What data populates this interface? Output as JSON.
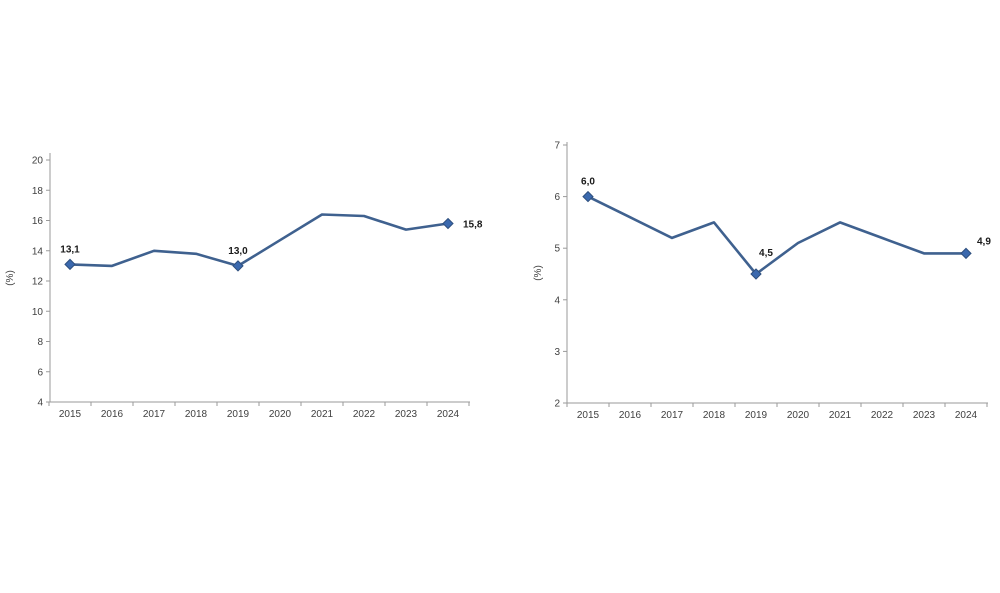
{
  "page": {
    "background_color": "#ffffff"
  },
  "chart_data": [
    {
      "id": "left-chart",
      "type": "line",
      "title": "",
      "xlabel": "",
      "ylabel": "(%)",
      "categories": [
        "2015",
        "2016",
        "2017",
        "2018",
        "2019",
        "2020",
        "2021",
        "2022",
        "2023",
        "2024"
      ],
      "values": [
        13.1,
        13.0,
        14.0,
        13.8,
        13.0,
        14.7,
        16.4,
        16.3,
        15.4,
        15.8
      ],
      "ylim": [
        4,
        20
      ],
      "ytick_step": 2,
      "grid": false,
      "legend": "none",
      "line_color": "#3F618F",
      "marker_color": "#3B69AE",
      "marker_stroke_color": "#2E4F7E",
      "axis_color": "#9a9a9a",
      "point_labels": [
        {
          "index": 0,
          "text": "13,1",
          "pos": "above"
        },
        {
          "index": 4,
          "text": "13,0",
          "pos": "above"
        },
        {
          "index": 9,
          "text": "15,8",
          "pos": "right"
        }
      ]
    },
    {
      "id": "right-chart",
      "type": "line",
      "title": "",
      "xlabel": "",
      "ylabel": "(%)",
      "categories": [
        "2015",
        "2016",
        "2017",
        "2018",
        "2019",
        "2020",
        "2021",
        "2022",
        "2023",
        "2024"
      ],
      "values": [
        6.0,
        5.6,
        5.2,
        5.5,
        4.5,
        5.1,
        5.5,
        5.2,
        4.9,
        4.9
      ],
      "ylim": [
        2,
        7
      ],
      "ytick_step": 1,
      "grid": false,
      "legend": "none",
      "line_color": "#3F618F",
      "marker_color": "#3B69AE",
      "marker_stroke_color": "#2E4F7E",
      "axis_color": "#9a9a9a",
      "point_labels": [
        {
          "index": 0,
          "text": "6,0",
          "pos": "above"
        },
        {
          "index": 4,
          "text": "4,5",
          "pos": "above-right"
        },
        {
          "index": 9,
          "text": "4,9",
          "pos": "right-up"
        }
      ]
    }
  ]
}
